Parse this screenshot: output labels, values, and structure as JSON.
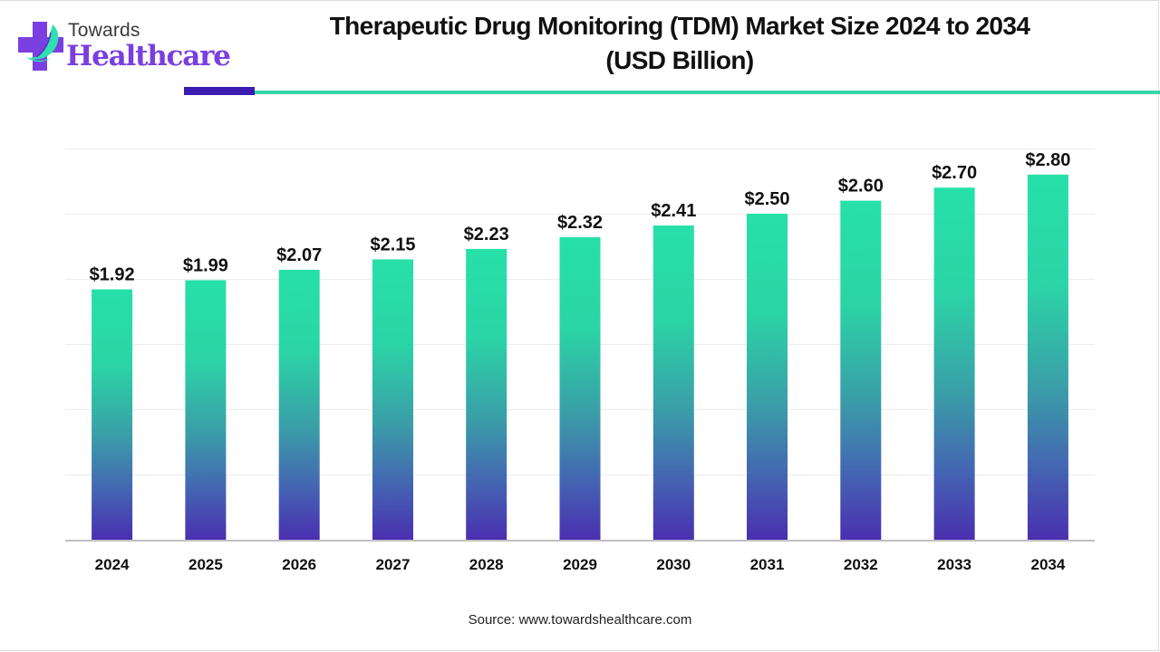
{
  "brand": {
    "name_top": "Towards",
    "name_bottom": "Healthcare",
    "icon": "medical-cross-leaf-icon",
    "colors": {
      "purple": "#7a3fe0",
      "teal": "#2fe0b0",
      "accent_dark": "#3a1db0",
      "accent_green": "#38d6a9"
    }
  },
  "chart_data": {
    "type": "bar",
    "title": "Therapeutic Drug Monitoring (TDM) Market Size 2024 to 2034 (USD Billion)",
    "title_line1": "Therapeutic Drug Monitoring (TDM) Market Size 2024 to 2034",
    "title_line2": "(USD Billion)",
    "xlabel": "",
    "ylabel": "",
    "categories": [
      "2024",
      "2025",
      "2026",
      "2027",
      "2028",
      "2029",
      "2030",
      "2031",
      "2032",
      "2033",
      "2034"
    ],
    "values": [
      1.92,
      1.99,
      2.07,
      2.15,
      2.23,
      2.32,
      2.41,
      2.5,
      2.6,
      2.7,
      2.8
    ],
    "data_labels": [
      "$1.92",
      "$1.99",
      "$2.07",
      "$2.15",
      "$2.23",
      "$2.32",
      "$2.41",
      "$2.50",
      "$2.60",
      "$2.70",
      "$2.80"
    ],
    "ylim": [
      0,
      3.0
    ],
    "y_grid_step": 0.5,
    "grid": true,
    "y_tick_labels_visible": false,
    "legend": "none",
    "bar_gradient": {
      "top": "#27e0a8",
      "middle": "#3a9fa8",
      "bottom": "#4a2fb0"
    }
  },
  "source": "Source: www.towardshealthcare.com"
}
